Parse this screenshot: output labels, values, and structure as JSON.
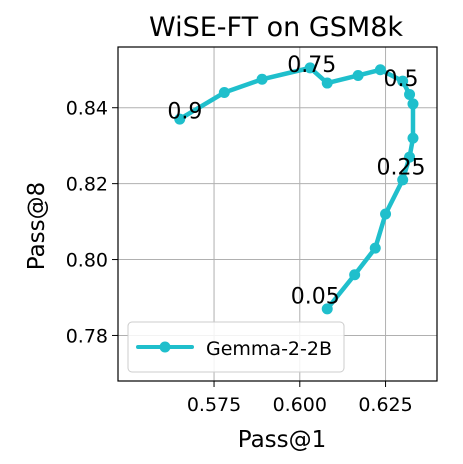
{
  "chart_data": {
    "type": "line",
    "title": "WiSE-FT on GSM8k",
    "xlabel": "Pass@1",
    "ylabel": "Pass@8",
    "xlim": [
      0.547,
      0.64
    ],
    "ylim": [
      0.768,
      0.856
    ],
    "xticks": [
      0.575,
      0.6,
      0.625
    ],
    "xtick_labels": [
      "0.575",
      "0.600",
      "0.625"
    ],
    "yticks": [
      0.78,
      0.8,
      0.82,
      0.84
    ],
    "ytick_labels": [
      "0.78",
      "0.80",
      "0.82",
      "0.84"
    ],
    "grid": true,
    "legend": {
      "position": "lower-left",
      "entries": [
        "Gemma-2-2B"
      ]
    },
    "series": [
      {
        "name": "Gemma-2-2B",
        "color": "#1fbfcc",
        "x": [
          0.608,
          0.616,
          0.622,
          0.625,
          0.63,
          0.632,
          0.633,
          0.633,
          0.632,
          0.63,
          0.6235,
          0.617,
          0.608,
          0.603,
          0.589,
          0.578,
          0.565
        ],
        "y": [
          0.787,
          0.796,
          0.803,
          0.812,
          0.821,
          0.827,
          0.832,
          0.841,
          0.8435,
          0.847,
          0.85,
          0.8485,
          0.8465,
          0.8505,
          0.8475,
          0.844,
          0.837
        ]
      }
    ],
    "annotations": [
      {
        "text": "0.05",
        "x": 0.6045,
        "y": 0.7905
      },
      {
        "text": "0.25",
        "x": 0.6295,
        "y": 0.8245
      },
      {
        "text": "0.5",
        "x": 0.6295,
        "y": 0.8478
      },
      {
        "text": "0.75",
        "x": 0.6035,
        "y": 0.8515
      },
      {
        "text": "0.9",
        "x": 0.5665,
        "y": 0.8393
      }
    ]
  }
}
